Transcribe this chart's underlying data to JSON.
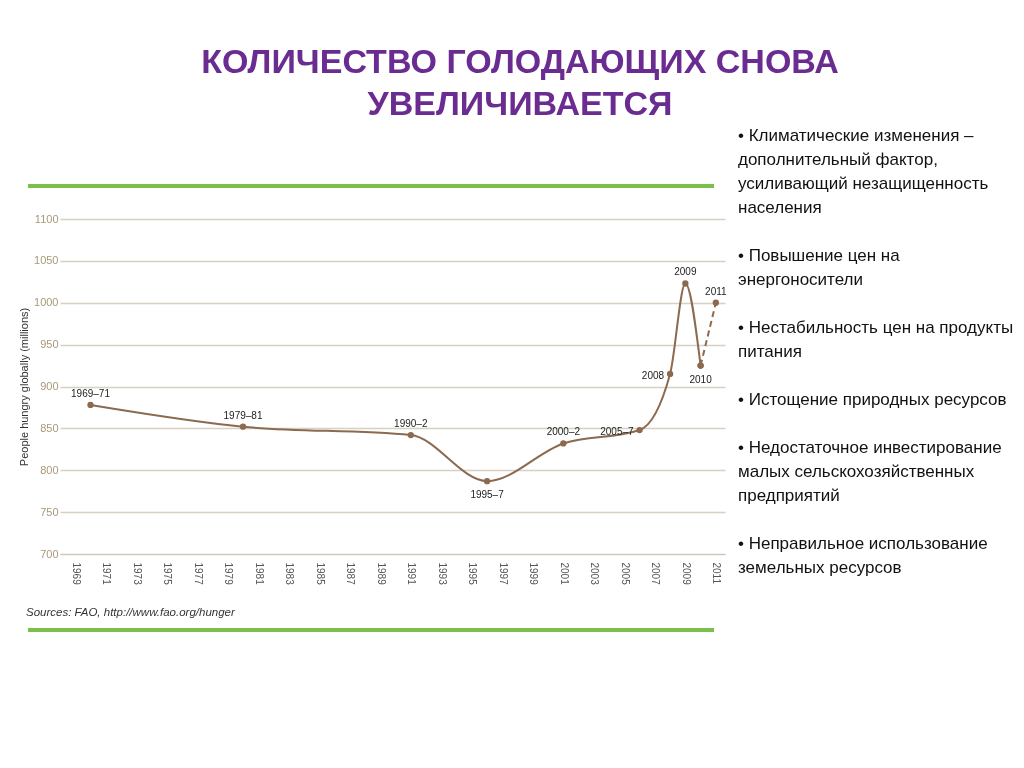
{
  "chart_data": {
    "type": "line",
    "title": "КОЛИЧЕСТВО ГОЛОДАЮЩИХ СНОВА УВЕЛИЧИВАЕТСЯ",
    "ylabel": "People hungry globally (millions)",
    "xlim": [
      1968,
      2011.6
    ],
    "xticks": [
      1969,
      1971,
      1973,
      1975,
      1977,
      1979,
      1981,
      1983,
      1985,
      1987,
      1989,
      1991,
      1993,
      1995,
      1997,
      1999,
      2001,
      2003,
      2005,
      2007,
      2009,
      2011
    ],
    "ylim": [
      700,
      1100
    ],
    "yticks": [
      700,
      750,
      800,
      850,
      900,
      950,
      1000,
      1050,
      1100
    ],
    "grid": "y",
    "marker": "circle",
    "series": [
      {
        "color": "#8b6a4f",
        "line_style": "solid",
        "x": [
          1970,
          1980,
          1991,
          1996,
          2001,
          2006,
          2008,
          2009,
          2010
        ],
        "values": [
          878,
          852,
          842,
          787,
          832,
          848,
          915,
          1023,
          925
        ]
      },
      {
        "color": "#8b6a4f",
        "line_style": "dashed",
        "x": [
          2010,
          2011
        ],
        "values": [
          925,
          1000
        ]
      }
    ],
    "annotations": [
      {
        "text": "1969–71",
        "x": 1970,
        "y": 878
      },
      {
        "text": "1979–81",
        "x": 1980,
        "y": 852
      },
      {
        "text": "1990–2",
        "x": 1991,
        "y": 842
      },
      {
        "text": "1995–7",
        "x": 1996,
        "y": 787
      },
      {
        "text": "2000–2",
        "x": 2001,
        "y": 832
      },
      {
        "text": "2005–7",
        "x": 2006,
        "y": 848
      },
      {
        "text": "2008",
        "x": 2008,
        "y": 915
      },
      {
        "text": "2009",
        "x": 2009,
        "y": 1023
      },
      {
        "text": "2010",
        "x": 2010,
        "y": 925
      },
      {
        "text": "2011",
        "x": 2011,
        "y": 1000
      },
      "Sources: FAO, http://www.fao.org/hunger",
      "• Климатические изменения – дополнительный фактор, усиливающий незащищенность населения",
      "• Повышение цен на энергоносители",
      "• Нестабильность цен на продукты питания",
      "• Истощение природных ресурсов",
      "• Недостаточное инвестирование малых сельскохозяйственных предприятий",
      "• Неправильное использование земельных ресурсов"
    ]
  }
}
